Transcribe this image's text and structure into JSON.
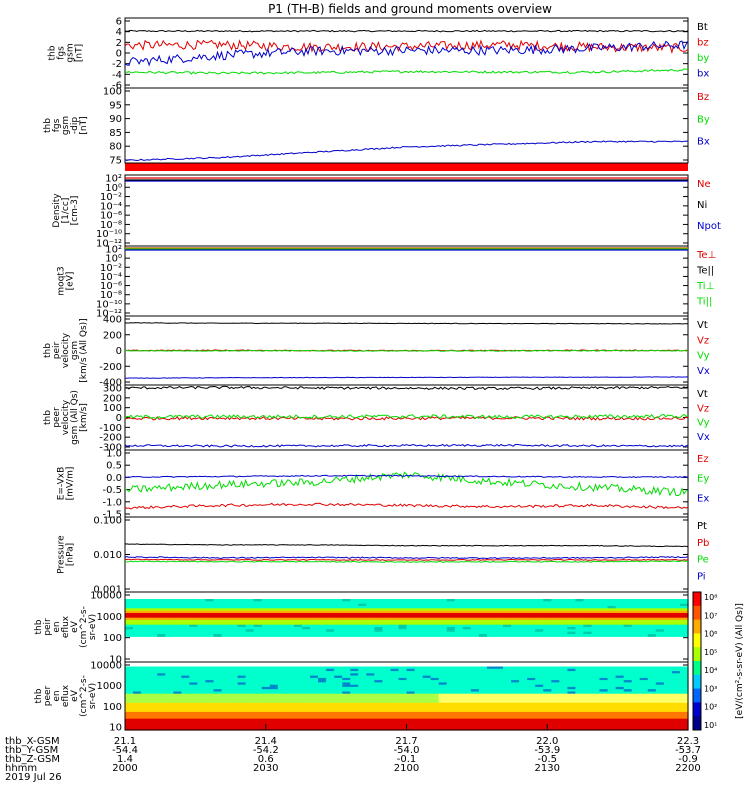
{
  "title": "P1 (TH-B) fields and ground moments overview",
  "colors": {
    "black": "#000000",
    "red": "#e00000",
    "green": "#00dd00",
    "blue": "#0000cc",
    "brown": "#b08000",
    "magenta": "#cc00cc",
    "yellow": "#dddd00"
  },
  "chart_data": [
    {
      "type": "line",
      "ylabel": [
        "thb",
        "fgs",
        "gsm",
        "[nT]"
      ],
      "yticks": [
        "6",
        "4",
        "2",
        "0",
        "-2",
        "-4",
        "-6"
      ],
      "ylim": [
        -6,
        6.3
      ],
      "legend": [
        {
          "name": "Bt",
          "color": "#000000"
        },
        {
          "name": "bz",
          "color": "#e00000"
        },
        {
          "name": "by",
          "color": "#00dd00"
        },
        {
          "name": "bx",
          "color": "#0000cc"
        }
      ],
      "series": [
        {
          "name": "Bt",
          "color": "#000000",
          "base": [
            4,
            4,
            4,
            4,
            4,
            4,
            4
          ],
          "noise": 0.12
        },
        {
          "name": "bz",
          "color": "#e00000",
          "base": [
            1.5,
            1.6,
            1.2,
            1.3,
            1.6,
            1.2,
            1.0
          ],
          "noise": 0.8
        },
        {
          "name": "by",
          "color": "#00dd00",
          "base": [
            -3.2,
            -3.4,
            -3.3,
            -3.1,
            -3.2,
            -3.2,
            -2.8
          ],
          "noise": 0.2
        },
        {
          "name": "bx",
          "color": "#0000cc",
          "base": [
            -1.5,
            -0.3,
            0.5,
            0.6,
            0.6,
            1.0,
            1.6
          ],
          "noise": 0.8
        }
      ]
    },
    {
      "type": "line",
      "ylabel": [
        "thb",
        "fgs",
        "gsm",
        "-dip",
        "[nT]"
      ],
      "yticks": [
        "100",
        "95",
        "90",
        "85",
        "80",
        "75"
      ],
      "ylim": [
        72,
        100
      ],
      "legend": [
        {
          "name": "Bz",
          "color": "#e00000"
        },
        {
          "name": "By",
          "color": "#00dd00"
        },
        {
          "name": "Bx",
          "color": "#0000cc"
        }
      ],
      "series": [
        {
          "name": "Bx",
          "color": "#0000cc",
          "base": [
            73,
            74,
            76,
            78,
            79,
            80,
            80
          ],
          "noise": 0.25
        }
      ]
    },
    {
      "type": "line",
      "ylabel": [
        "Density",
        "[1/cc]",
        "[cm-3]"
      ],
      "yticks": [
        "10²",
        "10⁰",
        "10⁻²",
        "10⁻⁴",
        "10⁻⁶",
        "10⁻⁸",
        "10⁻¹⁰",
        "10⁻¹²"
      ],
      "legend": [
        {
          "name": "Ne",
          "color": "#e00000"
        },
        {
          "name": "Ni",
          "color": "#000000"
        },
        {
          "name": "Npot",
          "color": "#0000cc"
        }
      ]
    },
    {
      "type": "line",
      "ylabel": [
        "moqt3",
        "[eV]"
      ],
      "yticks": [
        "10²",
        "10⁰",
        "10⁻²",
        "10⁻⁴",
        "10⁻⁶",
        "10⁻⁸",
        "10⁻¹⁰",
        "10⁻¹²"
      ],
      "legend": [
        {
          "name": "Te⊥",
          "color": "#e00000"
        },
        {
          "name": "Te||",
          "color": "#000000"
        },
        {
          "name": "Ti⊥",
          "color": "#00dd00"
        },
        {
          "name": "Ti||",
          "color": "#00dd00"
        }
      ]
    },
    {
      "type": "line",
      "ylabel": [
        "thb",
        "peir",
        "velocity",
        "gsm",
        "[km/s (All Qs)]"
      ],
      "yticks": [
        "400",
        "200",
        "0",
        "-200",
        "-400"
      ],
      "ylim": [
        -430,
        430
      ],
      "legend": [
        {
          "name": "Vt",
          "color": "#000000"
        },
        {
          "name": "Vz",
          "color": "#e00000"
        },
        {
          "name": "Vy",
          "color": "#00dd00"
        },
        {
          "name": "Vx",
          "color": "#0000cc"
        }
      ],
      "series": [
        {
          "name": "Vt",
          "color": "#000000",
          "base": [
            345,
            340,
            340,
            338,
            335,
            335,
            332
          ],
          "noise": 3
        },
        {
          "name": "Vz",
          "color": "#e00000",
          "base": [
            0,
            2,
            0,
            -2,
            0,
            2,
            0
          ],
          "noise": 6
        },
        {
          "name": "Vy",
          "color": "#00dd00",
          "base": [
            -5,
            -3,
            -4,
            -6,
            -4,
            -3,
            -2
          ],
          "noise": 5
        },
        {
          "name": "Vx",
          "color": "#0000cc",
          "base": [
            -345,
            -340,
            -338,
            -336,
            -334,
            -333,
            -330
          ],
          "noise": 3
        }
      ]
    },
    {
      "type": "line",
      "ylabel": [
        "thb",
        "peer",
        "velocity",
        "gsm (All Qs)",
        "[km/s]"
      ],
      "yticks": [
        "300",
        "200",
        "100",
        "0",
        "-100",
        "-200",
        "-300"
      ],
      "ylim": [
        -330,
        330
      ],
      "legend": [
        {
          "name": "Vt",
          "color": "#000000"
        },
        {
          "name": "Vz",
          "color": "#e00000"
        },
        {
          "name": "Vy",
          "color": "#00dd00"
        },
        {
          "name": "Vx",
          "color": "#0000cc"
        }
      ],
      "series": [
        {
          "name": "Vt",
          "color": "#000000",
          "base": [
            300,
            305,
            300,
            298,
            295,
            300,
            305
          ],
          "noise": 12
        },
        {
          "name": "Vz",
          "color": "#e00000",
          "base": [
            -10,
            -5,
            -12,
            -8,
            -5,
            -10,
            -8
          ],
          "noise": 15
        },
        {
          "name": "Vy",
          "color": "#00dd00",
          "base": [
            5,
            10,
            8,
            12,
            6,
            10,
            15
          ],
          "noise": 18
        },
        {
          "name": "Vx",
          "color": "#0000cc",
          "base": [
            -285,
            -290,
            -288,
            -285,
            -282,
            -288,
            -290
          ],
          "noise": 10
        }
      ]
    },
    {
      "type": "line",
      "ylabel": [
        "E=-VxB",
        "[mV/m]"
      ],
      "yticks": [
        "1.0",
        "0.5",
        "0.0",
        "-0.5",
        "-1.0",
        "-1.5"
      ],
      "ylim": [
        -1.55,
        1.05
      ],
      "legend": [
        {
          "name": "Ez",
          "color": "#e00000"
        },
        {
          "name": "Ey",
          "color": "#00dd00"
        },
        {
          "name": "Ex",
          "color": "#0000cc"
        }
      ],
      "series": [
        {
          "name": "Ey",
          "color": "#00dd00",
          "base": [
            -0.5,
            -0.3,
            -0.2,
            0.1,
            -0.2,
            -0.4,
            -0.6
          ],
          "noise": 0.15
        },
        {
          "name": "Ex",
          "color": "#0000cc",
          "base": [
            0.0,
            0.02,
            0.05,
            0.05,
            0.02,
            0.0,
            0.0
          ],
          "noise": 0.02
        },
        {
          "name": "Ez",
          "color": "#e00000",
          "base": [
            -1.2,
            -1.1,
            -1.05,
            -1.1,
            -1.15,
            -1.1,
            -1.2
          ],
          "noise": 0.05
        }
      ]
    },
    {
      "type": "line",
      "ylabel": [
        "Pressure",
        "[nPa]"
      ],
      "yticks": [
        "0.100",
        "0.010",
        "0.001"
      ],
      "legend": [
        {
          "name": "Pt",
          "color": "#000000"
        },
        {
          "name": "Pb",
          "color": "#e00000"
        },
        {
          "name": "Pe",
          "color": "#00dd00"
        },
        {
          "name": "Pi",
          "color": "#0000cc"
        }
      ],
      "series": [
        {
          "name": "Pt",
          "color": "#000000",
          "base": [
            0.02,
            0.019,
            0.019,
            0.018,
            0.018,
            0.018,
            0.017
          ],
          "noise": 0.0004
        },
        {
          "name": "Pi",
          "color": "#0000cc",
          "base": [
            0.0085,
            0.008,
            0.0082,
            0.008,
            0.0079,
            0.008,
            0.0085
          ],
          "noise": 0.0003
        },
        {
          "name": "Pb",
          "color": "#e00000",
          "base": [
            0.0072,
            0.007,
            0.007,
            0.0069,
            0.007,
            0.007,
            0.007
          ],
          "noise": 0.0002
        },
        {
          "name": "Pe",
          "color": "#00dd00",
          "base": [
            0.0063,
            0.0062,
            0.0062,
            0.0061,
            0.0062,
            0.0062,
            0.0064
          ],
          "noise": 0.0002
        }
      ]
    },
    {
      "type": "heatmap",
      "ylabel": [
        "thb",
        "peir",
        "en",
        "eflux",
        "eV",
        "(cm^2-s-",
        "sr-eV)"
      ],
      "yticks": [
        "10000",
        "1000",
        "100",
        "10"
      ]
    },
    {
      "type": "heatmap",
      "ylabel": [
        "thb",
        "peer",
        "en",
        "eflux",
        "eV",
        "(cm^2-s-",
        "sr-eV)"
      ],
      "yticks": [
        "10000",
        "1000",
        "100",
        "10"
      ]
    }
  ],
  "colorbar": {
    "ticks": [
      "10⁸",
      "10⁷",
      "10⁶",
      "10⁵",
      "10⁴",
      "10³",
      "10²",
      "10¹"
    ],
    "label": "[eV/(cm²-s-sr-eV) (All Qs)]"
  },
  "xaxis": {
    "rows": [
      {
        "label": "thb_X-GSM",
        "values": [
          "21.1",
          "21.4",
          "21.7",
          "22.0",
          "22.3"
        ]
      },
      {
        "label": "thb_Y-GSM",
        "values": [
          "-54.4",
          "-54.2",
          "-54.0",
          "-53.9",
          "-53.7"
        ]
      },
      {
        "label": "thb_Z-GSM",
        "values": [
          "1.4",
          "0.6",
          "-0.1",
          "-0.5",
          "-0.9"
        ]
      },
      {
        "label": "hhmm",
        "values": [
          "2000",
          "2030",
          "2100",
          "2130",
          "2200"
        ]
      }
    ],
    "date": "2019 Jul 26"
  }
}
